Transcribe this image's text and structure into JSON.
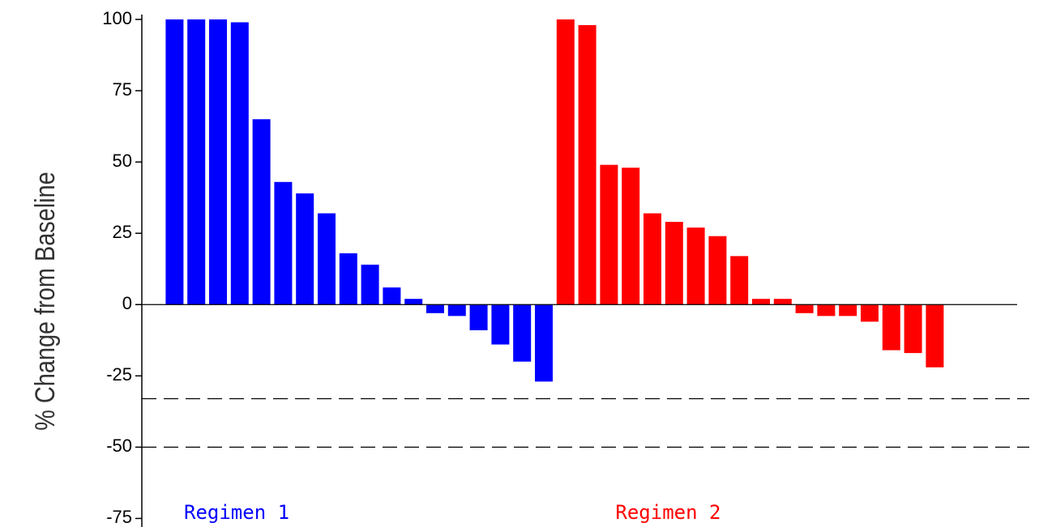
{
  "chart_data": {
    "type": "bar",
    "ylabel": "% Change from Baseline",
    "ylim": [
      -78,
      101.7
    ],
    "yticks": [
      100,
      75,
      50,
      25,
      0,
      -25,
      -50,
      -75
    ],
    "reference_lines": [
      -33,
      -50
    ],
    "series": [
      {
        "name": "Regimen 1",
        "color": "#0000ff",
        "values": [
          100,
          100,
          100,
          99,
          65,
          43,
          39,
          32,
          18,
          14,
          6,
          2,
          -3,
          -4,
          -9,
          -14,
          -20,
          -27
        ]
      },
      {
        "name": "Regimen 2",
        "color": "#ff0000",
        "values": [
          100,
          98,
          49,
          48,
          32,
          29,
          27,
          24,
          17,
          2,
          2,
          -3,
          -4,
          -4,
          -6,
          -16,
          -17,
          -22
        ]
      }
    ]
  }
}
